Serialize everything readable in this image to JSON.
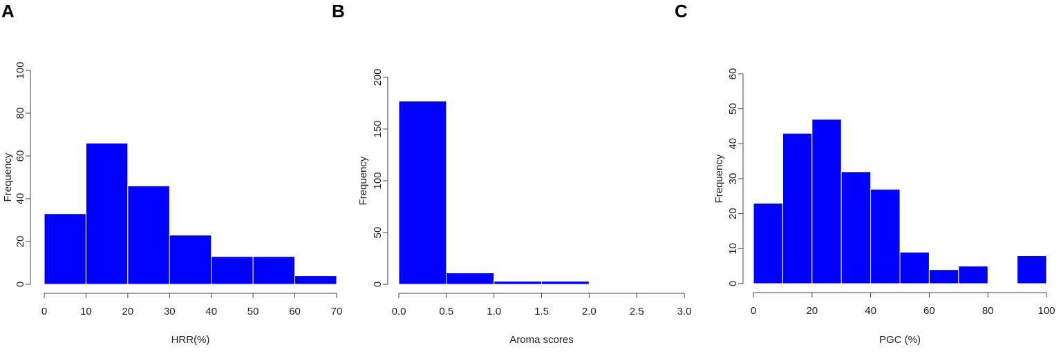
{
  "colors": {
    "bar_fill": "#0000ff",
    "bar_border": "#ffffff",
    "axis": "#444444",
    "text": "#222222"
  },
  "chart_data": [
    {
      "type": "bar",
      "panel_label": "A",
      "title": "",
      "xlabel": "HRR(%)",
      "ylabel": "Frequency",
      "xlim": [
        0,
        70
      ],
      "ylim": [
        0,
        100
      ],
      "x_ticks": [
        0,
        10,
        20,
        30,
        40,
        50,
        60,
        70
      ],
      "y_ticks": [
        0,
        20,
        40,
        60,
        80,
        100
      ],
      "bins": [
        [
          0,
          10
        ],
        [
          10,
          20
        ],
        [
          20,
          30
        ],
        [
          30,
          40
        ],
        [
          40,
          50
        ],
        [
          50,
          60
        ],
        [
          60,
          70
        ]
      ],
      "values": [
        33,
        66,
        46,
        23,
        13,
        13,
        4
      ],
      "grid": false,
      "legend": "none"
    },
    {
      "type": "bar",
      "panel_label": "B",
      "title": "",
      "xlabel": "Aroma scores",
      "ylabel": "Frequency",
      "xlim": [
        0,
        3
      ],
      "ylim": [
        0,
        200
      ],
      "x_ticks": [
        "0.0",
        "0.5",
        "1.0",
        "1.5",
        "2.0",
        "2.5",
        "3.0"
      ],
      "y_ticks": [
        0,
        50,
        100,
        150,
        200
      ],
      "bins": [
        [
          0,
          0.5
        ],
        [
          0.5,
          1.0
        ],
        [
          1.0,
          1.5
        ],
        [
          1.5,
          2.0
        ]
      ],
      "values": [
        177,
        11,
        3,
        3
      ],
      "grid": false,
      "legend": "none"
    },
    {
      "type": "bar",
      "panel_label": "C",
      "title": "",
      "xlabel": "PGC (%)",
      "ylabel": "Frequency",
      "xlim": [
        0,
        100
      ],
      "ylim": [
        0,
        60
      ],
      "x_ticks": [
        0,
        20,
        40,
        60,
        80,
        100
      ],
      "y_ticks": [
        0,
        10,
        20,
        30,
        40,
        50,
        60
      ],
      "bins": [
        [
          0,
          10
        ],
        [
          10,
          20
        ],
        [
          20,
          30
        ],
        [
          30,
          40
        ],
        [
          40,
          50
        ],
        [
          50,
          60
        ],
        [
          60,
          70
        ],
        [
          70,
          80
        ],
        [
          80,
          90
        ],
        [
          90,
          100
        ]
      ],
      "values": [
        23,
        43,
        47,
        32,
        27,
        9,
        4,
        5,
        0,
        8
      ],
      "grid": false,
      "legend": "none"
    }
  ]
}
